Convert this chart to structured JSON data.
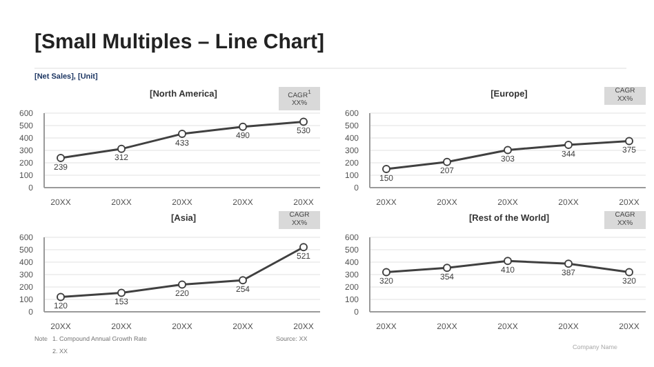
{
  "chart_data": [
    {
      "type": "other",
      "title": "[Small Multiples – Line Chart]",
      "subtitle": "[Net Sales], [Unit]",
      "annotations": [
        "Note",
        "1. Compound Annual Growth Rate",
        "2. XX",
        "Source: XX",
        "Company Name"
      ]
    },
    {
      "type": "line",
      "title": "[North America]",
      "categories": [
        "20XX",
        "20XX",
        "20XX",
        "20XX",
        "20XX"
      ],
      "values": [
        239,
        312,
        433,
        490,
        530
      ],
      "color": "#404040",
      "ylim": [
        0,
        600
      ],
      "yticks": [
        0,
        100,
        200,
        300,
        400,
        500,
        600
      ],
      "grid": "y",
      "marker": "circle",
      "data_labels": true,
      "annotations": [
        "CAGR$^{1}$",
        "XX%"
      ]
    },
    {
      "type": "line",
      "title": "[Europe]",
      "categories": [
        "20XX",
        "20XX",
        "20XX",
        "20XX",
        "20XX"
      ],
      "values": [
        150,
        207,
        303,
        344,
        375
      ],
      "color": "#404040",
      "ylim": [
        0,
        600
      ],
      "yticks": [
        0,
        100,
        200,
        300,
        400,
        500,
        600
      ],
      "grid": "y",
      "marker": "circle",
      "data_labels": true,
      "annotations": [
        "CAGR",
        "XX%"
      ]
    },
    {
      "type": "line",
      "title": "[Asia]",
      "categories": [
        "20XX",
        "20XX",
        "20XX",
        "20XX",
        "20XX"
      ],
      "values": [
        120,
        153,
        220,
        254,
        521
      ],
      "color": "#404040",
      "ylim": [
        0,
        600
      ],
      "yticks": [
        0,
        100,
        200,
        300,
        400,
        500,
        600
      ],
      "grid": "y",
      "marker": "circle",
      "data_labels": true,
      "annotations": [
        "CAGR",
        "XX%"
      ]
    },
    {
      "type": "line",
      "title": "[Rest of the World]",
      "categories": [
        "20XX",
        "20XX",
        "20XX",
        "20XX",
        "20XX"
      ],
      "values": [
        320,
        354,
        410,
        387,
        320
      ],
      "color": "#404040",
      "ylim": [
        0,
        600
      ],
      "yticks": [
        0,
        100,
        200,
        300,
        400,
        500,
        600
      ],
      "grid": "y",
      "marker": "circle",
      "data_labels": true,
      "annotations": [
        "CAGR",
        "XX%"
      ]
    }
  ]
}
